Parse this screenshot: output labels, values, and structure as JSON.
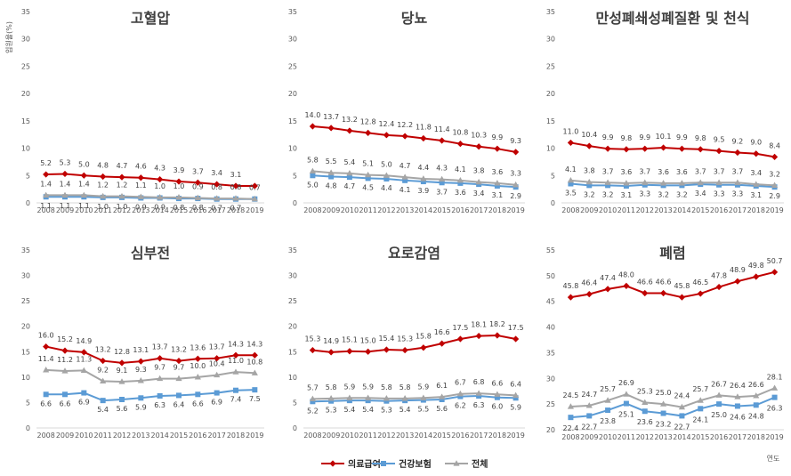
{
  "ylabel": "입원율(%)",
  "xlabel": "연도",
  "colors": {
    "medical_aid": "#C00000",
    "health_insurance": "#5B9BD5",
    "total": "#A5A5A5"
  },
  "legend": [
    {
      "key": "medical_aid",
      "name": "의료급여",
      "marker": "diamond"
    },
    {
      "key": "health_insurance",
      "name": "건강보험",
      "marker": "square"
    },
    {
      "key": "total",
      "name": "전체",
      "marker": "triangle"
    }
  ],
  "chart_data": [
    {
      "type": "line",
      "title": "고혈압",
      "x": [
        "2008",
        "2009",
        "2010",
        "2011",
        "2012",
        "2013",
        "2014",
        "2015",
        "2016",
        "2017",
        "2018",
        "2019"
      ],
      "ylim": [
        0,
        35
      ],
      "yticks": [
        0,
        5,
        10,
        15,
        20,
        25,
        30,
        35
      ],
      "series": [
        {
          "name": "의료급여",
          "values": [
            5.2,
            5.3,
            5.0,
            4.8,
            4.7,
            4.6,
            4.3,
            3.9,
            3.7,
            3.4,
            3.1,
            3.1
          ],
          "labels": [
            "5.2",
            "5.3",
            "5.0",
            "4.8",
            "4.7",
            "4.6",
            "4.3",
            "3.9",
            "3.7",
            "3.4",
            "3.1",
            ""
          ]
        },
        {
          "name": "건강보험",
          "values": [
            1.1,
            1.1,
            1.1,
            1.0,
            1.0,
            0.9,
            0.9,
            0.8,
            0.8,
            0.7,
            0.7,
            0.7
          ],
          "labels": [
            "1.1",
            "1.1",
            "1.1",
            "1.0",
            "1.0",
            "0.9",
            "0.9",
            "0.8",
            "0.8",
            "0.7",
            "0.7",
            ""
          ]
        },
        {
          "name": "전체",
          "values": [
            1.4,
            1.4,
            1.4,
            1.2,
            1.2,
            1.1,
            1.0,
            1.0,
            0.9,
            0.8,
            0.8,
            0.7
          ],
          "labels": [
            "1.4",
            "1.4",
            "1.4",
            "1.2",
            "1.2",
            "1.1",
            "1.0",
            "1.0",
            "0.9",
            "0.8",
            "0.8",
            "0.7"
          ]
        }
      ]
    },
    {
      "type": "line",
      "title": "당뇨",
      "x": [
        "2008",
        "2009",
        "2010",
        "2011",
        "2012",
        "2013",
        "2014",
        "2015",
        "2016",
        "2017",
        "2018",
        "2019"
      ],
      "ylim": [
        0,
        35
      ],
      "yticks": [
        0,
        5,
        10,
        15,
        20,
        25,
        30,
        35
      ],
      "series": [
        {
          "name": "의료급여",
          "values": [
            14.0,
            13.7,
            13.2,
            12.8,
            12.4,
            12.2,
            11.8,
            11.4,
            10.8,
            10.3,
            9.9,
            9.3
          ],
          "labels": [
            "14.0",
            "13.7",
            "13.2",
            "12.8",
            "12.4",
            "12.2",
            "11.8",
            "11.4",
            "10.8",
            "10.3",
            "9.9",
            "9.3"
          ]
        },
        {
          "name": "건강보험",
          "values": [
            5.0,
            4.8,
            4.7,
            4.5,
            4.4,
            4.1,
            3.9,
            3.7,
            3.6,
            3.4,
            3.1,
            2.9
          ],
          "labels": [
            "5.0",
            "4.8",
            "4.7",
            "4.5",
            "4.4",
            "4.1",
            "3.9",
            "3.7",
            "3.6",
            "3.4",
            "3.1",
            "2.9"
          ]
        },
        {
          "name": "전체",
          "values": [
            5.8,
            5.5,
            5.4,
            5.1,
            5.0,
            4.7,
            4.4,
            4.3,
            4.1,
            3.8,
            3.6,
            3.3
          ],
          "labels": [
            "5.8",
            "5.5",
            "5.4",
            "5.1",
            "5.0",
            "4.7",
            "4.4",
            "4.3",
            "4.1",
            "3.8",
            "3.6",
            "3.3"
          ]
        }
      ]
    },
    {
      "type": "line",
      "title": "만성폐쇄성폐질환 및 천식",
      "x": [
        "2008",
        "2009",
        "2010",
        "2011",
        "2012",
        "2013",
        "2014",
        "2015",
        "2016",
        "2017",
        "2018",
        "2019"
      ],
      "ylim": [
        0,
        35
      ],
      "yticks": [
        0,
        5,
        10,
        15,
        20,
        25,
        30,
        35
      ],
      "series": [
        {
          "name": "의료급여",
          "values": [
            11.0,
            10.4,
            9.9,
            9.8,
            9.9,
            10.1,
            9.9,
            9.8,
            9.5,
            9.2,
            9.0,
            8.4
          ],
          "labels": [
            "11.0",
            "10.4",
            "9.9",
            "9.8",
            "9.9",
            "10.1",
            "9.9",
            "9.8",
            "9.5",
            "9.2",
            "9.0",
            "8.4"
          ]
        },
        {
          "name": "건강보험",
          "values": [
            3.5,
            3.2,
            3.2,
            3.1,
            3.3,
            3.2,
            3.2,
            3.4,
            3.3,
            3.3,
            3.1,
            2.9
          ],
          "labels": [
            "3.5",
            "3.2",
            "3.2",
            "3.1",
            "3.3",
            "3.2",
            "3.2",
            "3.4",
            "3.3",
            "3.3",
            "3.1",
            "2.9"
          ]
        },
        {
          "name": "전체",
          "values": [
            4.1,
            3.8,
            3.7,
            3.6,
            3.7,
            3.6,
            3.6,
            3.7,
            3.7,
            3.7,
            3.4,
            3.2
          ],
          "labels": [
            "4.1",
            "3.8",
            "3.7",
            "3.6",
            "3.7",
            "3.6",
            "3.6",
            "3.7",
            "3.7",
            "3.7",
            "3.4",
            "3.2"
          ]
        }
      ]
    },
    {
      "type": "line",
      "title": "심부전",
      "x": [
        "2008",
        "2009",
        "2010",
        "2011",
        "2012",
        "2013",
        "2014",
        "2015",
        "2016",
        "2017",
        "2018",
        "2019"
      ],
      "ylim": [
        0,
        35
      ],
      "yticks": [
        0,
        5,
        10,
        15,
        20,
        25,
        30,
        35
      ],
      "series": [
        {
          "name": "의료급여",
          "values": [
            16.0,
            15.2,
            14.9,
            13.2,
            12.8,
            13.1,
            13.7,
            13.2,
            13.6,
            13.7,
            14.3,
            14.3
          ],
          "labels": [
            "16.0",
            "15.2",
            "14.9",
            "13.2",
            "12.8",
            "13.1",
            "13.7",
            "13.2",
            "13.6",
            "13.7",
            "14.3",
            "14.3"
          ]
        },
        {
          "name": "건강보험",
          "values": [
            6.6,
            6.6,
            6.9,
            5.4,
            5.6,
            5.9,
            6.3,
            6.4,
            6.6,
            6.9,
            7.4,
            7.5
          ],
          "labels": [
            "6.6",
            "6.6",
            "6.9",
            "5.4",
            "5.6",
            "5.9",
            "6.3",
            "6.4",
            "6.6",
            "6.9",
            "7.4",
            "7.5"
          ]
        },
        {
          "name": "전체",
          "values": [
            11.4,
            11.2,
            11.3,
            9.2,
            9.1,
            9.3,
            9.7,
            9.7,
            10.0,
            10.4,
            11.0,
            10.8
          ],
          "labels": [
            "11.4",
            "11.2",
            "11.3",
            "9.2",
            "9.1",
            "9.3",
            "9.7",
            "9.7",
            "10.0",
            "10.4",
            "11.0",
            "10.8"
          ]
        }
      ]
    },
    {
      "type": "line",
      "title": "요로감염",
      "x": [
        "2008",
        "2009",
        "2010",
        "2011",
        "2012",
        "2013",
        "2014",
        "2015",
        "2016",
        "2017",
        "2018",
        "2019"
      ],
      "ylim": [
        0,
        35
      ],
      "yticks": [
        0,
        5,
        10,
        15,
        20,
        25,
        30,
        35
      ],
      "series": [
        {
          "name": "의료급여",
          "values": [
            15.3,
            14.9,
            15.1,
            15.0,
            15.4,
            15.3,
            15.8,
            16.6,
            17.5,
            18.1,
            18.2,
            17.5
          ],
          "labels": [
            "15.3",
            "14.9",
            "15.1",
            "15.0",
            "15.4",
            "15.3",
            "15.8",
            "16.6",
            "17.5",
            "18.1",
            "18.2",
            "17.5"
          ]
        },
        {
          "name": "건강보험",
          "values": [
            5.2,
            5.3,
            5.4,
            5.4,
            5.3,
            5.4,
            5.5,
            5.6,
            6.2,
            6.3,
            6.0,
            5.9
          ],
          "labels": [
            "5.2",
            "5.3",
            "5.4",
            "5.4",
            "5.3",
            "5.4",
            "5.5",
            "5.6",
            "6.2",
            "6.3",
            "6.0",
            "5.9"
          ]
        },
        {
          "name": "전체",
          "values": [
            5.7,
            5.8,
            5.9,
            5.9,
            5.8,
            5.8,
            5.9,
            6.1,
            6.7,
            6.8,
            6.6,
            6.4
          ],
          "labels": [
            "5.7",
            "5.8",
            "5.9",
            "5.9",
            "5.8",
            "5.8",
            "5.9",
            "6.1",
            "6.7",
            "6.8",
            "6.6",
            "6.4"
          ]
        }
      ]
    },
    {
      "type": "line",
      "title": "폐렴",
      "x": [
        "2008",
        "2009",
        "2010",
        "2011",
        "2012",
        "2013",
        "2014",
        "2015",
        "2016",
        "2017",
        "2018",
        "2019"
      ],
      "ylim": [
        20,
        55
      ],
      "yticks": [
        20,
        25,
        30,
        35,
        40,
        45,
        50,
        55
      ],
      "series": [
        {
          "name": "의료급여",
          "values": [
            45.8,
            46.4,
            47.4,
            48.0,
            46.6,
            46.6,
            45.8,
            46.5,
            47.8,
            48.9,
            49.8,
            50.7
          ],
          "labels": [
            "45.8",
            "46.4",
            "47.4",
            "48.0",
            "46.6",
            "46.6",
            "45.8",
            "46.5",
            "47.8",
            "48.9",
            "49.8",
            "50.7"
          ]
        },
        {
          "name": "건강보험",
          "values": [
            22.4,
            22.7,
            23.8,
            25.1,
            23.6,
            23.2,
            22.7,
            24.1,
            25.0,
            24.6,
            24.8,
            26.3
          ],
          "labels": [
            "22.4",
            "22.7",
            "23.8",
            "25.1",
            "23.6",
            "23.2",
            "22.7",
            "24.1",
            "25.0",
            "24.6",
            "24.8",
            "26.3"
          ]
        },
        {
          "name": "전체",
          "values": [
            24.5,
            24.7,
            25.7,
            26.9,
            25.3,
            25.0,
            24.4,
            25.7,
            26.7,
            26.4,
            26.6,
            28.1
          ],
          "labels": [
            "24.5",
            "24.7",
            "25.7",
            "26.9",
            "25.3",
            "25.0",
            "24.4",
            "25.7",
            "26.7",
            "26.4",
            "26.6",
            "28.1"
          ]
        }
      ]
    }
  ]
}
